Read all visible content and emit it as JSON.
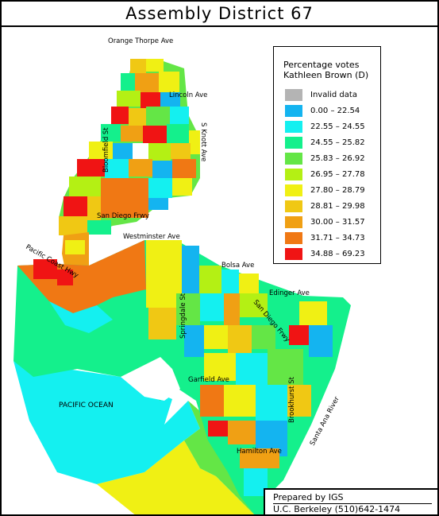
{
  "title": "Assembly District 67",
  "legend": {
    "title_line1": "Percentage votes",
    "title_line2": "Kathleen Brown (D)",
    "items": [
      {
        "label": "Invalid data",
        "color": "#b4b4b4"
      },
      {
        "label": "0.00 – 22.54",
        "color": "#14b4f0"
      },
      {
        "label": "22.55 – 24.55",
        "color": "#14f0f0"
      },
      {
        "label": "24.55 – 25.82",
        "color": "#14f08c"
      },
      {
        "label": "25.83 – 26.92",
        "color": "#64e646"
      },
      {
        "label": "26.95 – 27.78",
        "color": "#b4f014"
      },
      {
        "label": "27.80 – 28.79",
        "color": "#f0f014"
      },
      {
        "label": "28.81 – 29.98",
        "color": "#f0c814"
      },
      {
        "label": "30.00 – 31.57",
        "color": "#f0a014"
      },
      {
        "label": "31.71 – 34.73",
        "color": "#f07814"
      },
      {
        "label": "34.88 – 69.23",
        "color": "#f01414"
      }
    ]
  },
  "streets": {
    "orange_thorpe": "Orange Thorpe Ave",
    "lincoln": "Lincoln Ave",
    "knott": "S Knott Ave",
    "bloomfield": "Bloomfield St",
    "san_diego_frwy": "San Diego Frwy",
    "westminster": "Westminster Ave",
    "pacific_coast": "Pacific Coast Hwy",
    "bolsa": "Bolsa Ave",
    "edinger": "Edinger Ave",
    "springdale": "Springdale St",
    "san_diego_frwy_2": "San Diego Frwy",
    "garfield": "Garfield Ave",
    "brookhurst": "Brookhurst St",
    "santa_ana_river": "Santa Ana River",
    "hamilton": "Hamilton Ave"
  },
  "ocean_label": "PACIFIC OCEAN",
  "credit": {
    "line1": "Prepared by IGS",
    "line2": "U.C. Berkeley  (510)642-1474"
  }
}
